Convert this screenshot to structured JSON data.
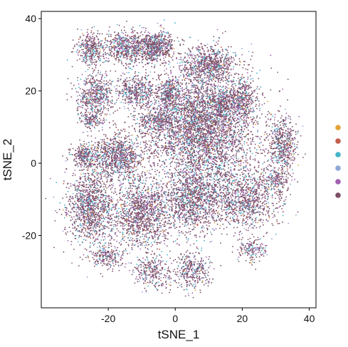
{
  "chart_data": {
    "type": "scatter",
    "title": "",
    "xlabel": "tSNE_1",
    "ylabel": "tSNE_2",
    "xlim": [
      -40,
      42
    ],
    "ylim": [
      -40,
      42
    ],
    "x_ticks": [
      -20,
      0,
      20,
      40
    ],
    "y_ticks": [
      -20,
      0,
      20,
      40
    ],
    "x_tick_labels": [
      "-20",
      "0",
      "20",
      "40"
    ],
    "y_tick_labels": [
      "-20",
      "0",
      "20",
      "40"
    ],
    "grid": false,
    "legend_position": "right",
    "legend_colors": [
      "#E3A33A",
      "#C25E4E",
      "#45B3C8",
      "#8FA9D6",
      "#A261B0",
      "#7B4E66"
    ],
    "clusters": [
      {
        "cx": 8,
        "cy": 10,
        "rx": 15,
        "ry": 15,
        "weight": 12
      },
      {
        "cx": -6,
        "cy": 32,
        "rx": 5,
        "ry": 4,
        "weight": 2
      },
      {
        "cx": -15,
        "cy": 32,
        "rx": 5,
        "ry": 4,
        "weight": 1.5
      },
      {
        "cx": -25,
        "cy": 32,
        "rx": 4,
        "ry": 4,
        "weight": 1
      },
      {
        "cx": 10,
        "cy": 27,
        "rx": 7,
        "ry": 5,
        "weight": 2
      },
      {
        "cx": -24,
        "cy": 19,
        "rx": 5,
        "ry": 6,
        "weight": 1.5
      },
      {
        "cx": -12,
        "cy": 20,
        "rx": 5,
        "ry": 4,
        "weight": 1.2
      },
      {
        "cx": -2,
        "cy": 19,
        "rx": 3,
        "ry": 4,
        "weight": 0.8
      },
      {
        "cx": 21,
        "cy": 18,
        "rx": 3,
        "ry": 5,
        "weight": 0.6
      },
      {
        "cx": -25,
        "cy": 12,
        "rx": 3,
        "ry": 2,
        "weight": 0.4
      },
      {
        "cx": -6,
        "cy": 12,
        "rx": 5,
        "ry": 3,
        "weight": 0.8
      },
      {
        "cx": -27,
        "cy": 2,
        "rx": 4,
        "ry": 3,
        "weight": 0.8
      },
      {
        "cx": -17,
        "cy": 2,
        "rx": 7,
        "ry": 6,
        "weight": 2.5
      },
      {
        "cx": 32,
        "cy": 5,
        "rx": 4,
        "ry": 7,
        "weight": 1.5
      },
      {
        "cx": -25,
        "cy": -12,
        "rx": 7,
        "ry": 10,
        "weight": 3.5
      },
      {
        "cx": -10,
        "cy": -14,
        "rx": 8,
        "ry": 9,
        "weight": 3.5
      },
      {
        "cx": 5,
        "cy": -10,
        "rx": 8,
        "ry": 8,
        "weight": 3
      },
      {
        "cx": 20,
        "cy": -10,
        "rx": 10,
        "ry": 8,
        "weight": 3
      },
      {
        "cx": 5,
        "cy": -30,
        "rx": 5,
        "ry": 5,
        "weight": 1
      },
      {
        "cx": -7,
        "cy": -30,
        "rx": 5,
        "ry": 4,
        "weight": 0.8
      },
      {
        "cx": 23,
        "cy": -24,
        "rx": 4,
        "ry": 3,
        "weight": 0.5
      },
      {
        "cx": -20,
        "cy": -26,
        "rx": 5,
        "ry": 3,
        "weight": 0.6
      },
      {
        "cx": 30,
        "cy": -5,
        "rx": 4,
        "ry": 3,
        "weight": 0.5
      },
      {
        "cx": 15,
        "cy": 17,
        "rx": 5,
        "ry": 3,
        "weight": 0.8
      }
    ],
    "total_points": 16000
  }
}
